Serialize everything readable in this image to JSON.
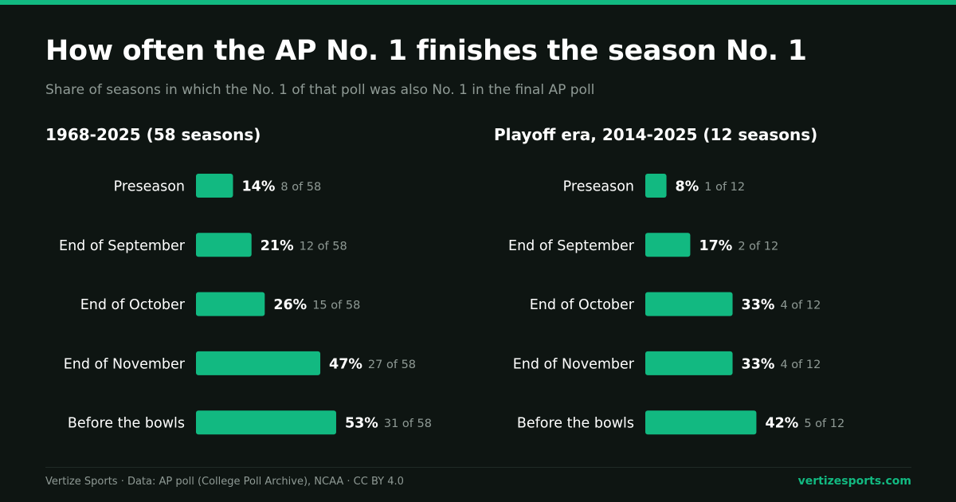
{
  "title": "How often the AP No. 1 finishes the season No. 1",
  "subtitle": "Share of seasons in which the No. 1 of that poll was also No. 1 in the final AP poll",
  "footer": {
    "source": "Vertize Sports · Data: AP poll (College Poll Archive), NCAA · CC BY 4.0",
    "site": "vertizesports.com"
  },
  "colors": {
    "background": "#0e1512",
    "accent": "#12b981",
    "muted_text": "#8f9a95",
    "text": "#ffffff"
  },
  "chart_data": [
    {
      "type": "bar",
      "orientation": "horizontal",
      "title": "1968-2025 (58 seasons)",
      "categories": [
        "Preseason",
        "End of September",
        "End of October",
        "End of November",
        "Before the bowls"
      ],
      "values": [
        14,
        21,
        26,
        47,
        53
      ],
      "value_labels": [
        "14%",
        "21%",
        "26%",
        "47%",
        "53%"
      ],
      "count_labels": [
        "8 of 58",
        "12 of 58",
        "15 of 58",
        "27 of 58",
        "31 of 58"
      ],
      "xlim": [
        0,
        100
      ],
      "grid": false
    },
    {
      "type": "bar",
      "orientation": "horizontal",
      "title": "Playoff era, 2014-2025 (12 seasons)",
      "categories": [
        "Preseason",
        "End of September",
        "End of October",
        "End of November",
        "Before the bowls"
      ],
      "values": [
        8,
        17,
        33,
        33,
        42
      ],
      "value_labels": [
        "8%",
        "17%",
        "33%",
        "33%",
        "42%"
      ],
      "count_labels": [
        "1 of 12",
        "2 of 12",
        "4 of 12",
        "4 of 12",
        "5 of 12"
      ],
      "xlim": [
        0,
        100
      ],
      "grid": false
    }
  ]
}
